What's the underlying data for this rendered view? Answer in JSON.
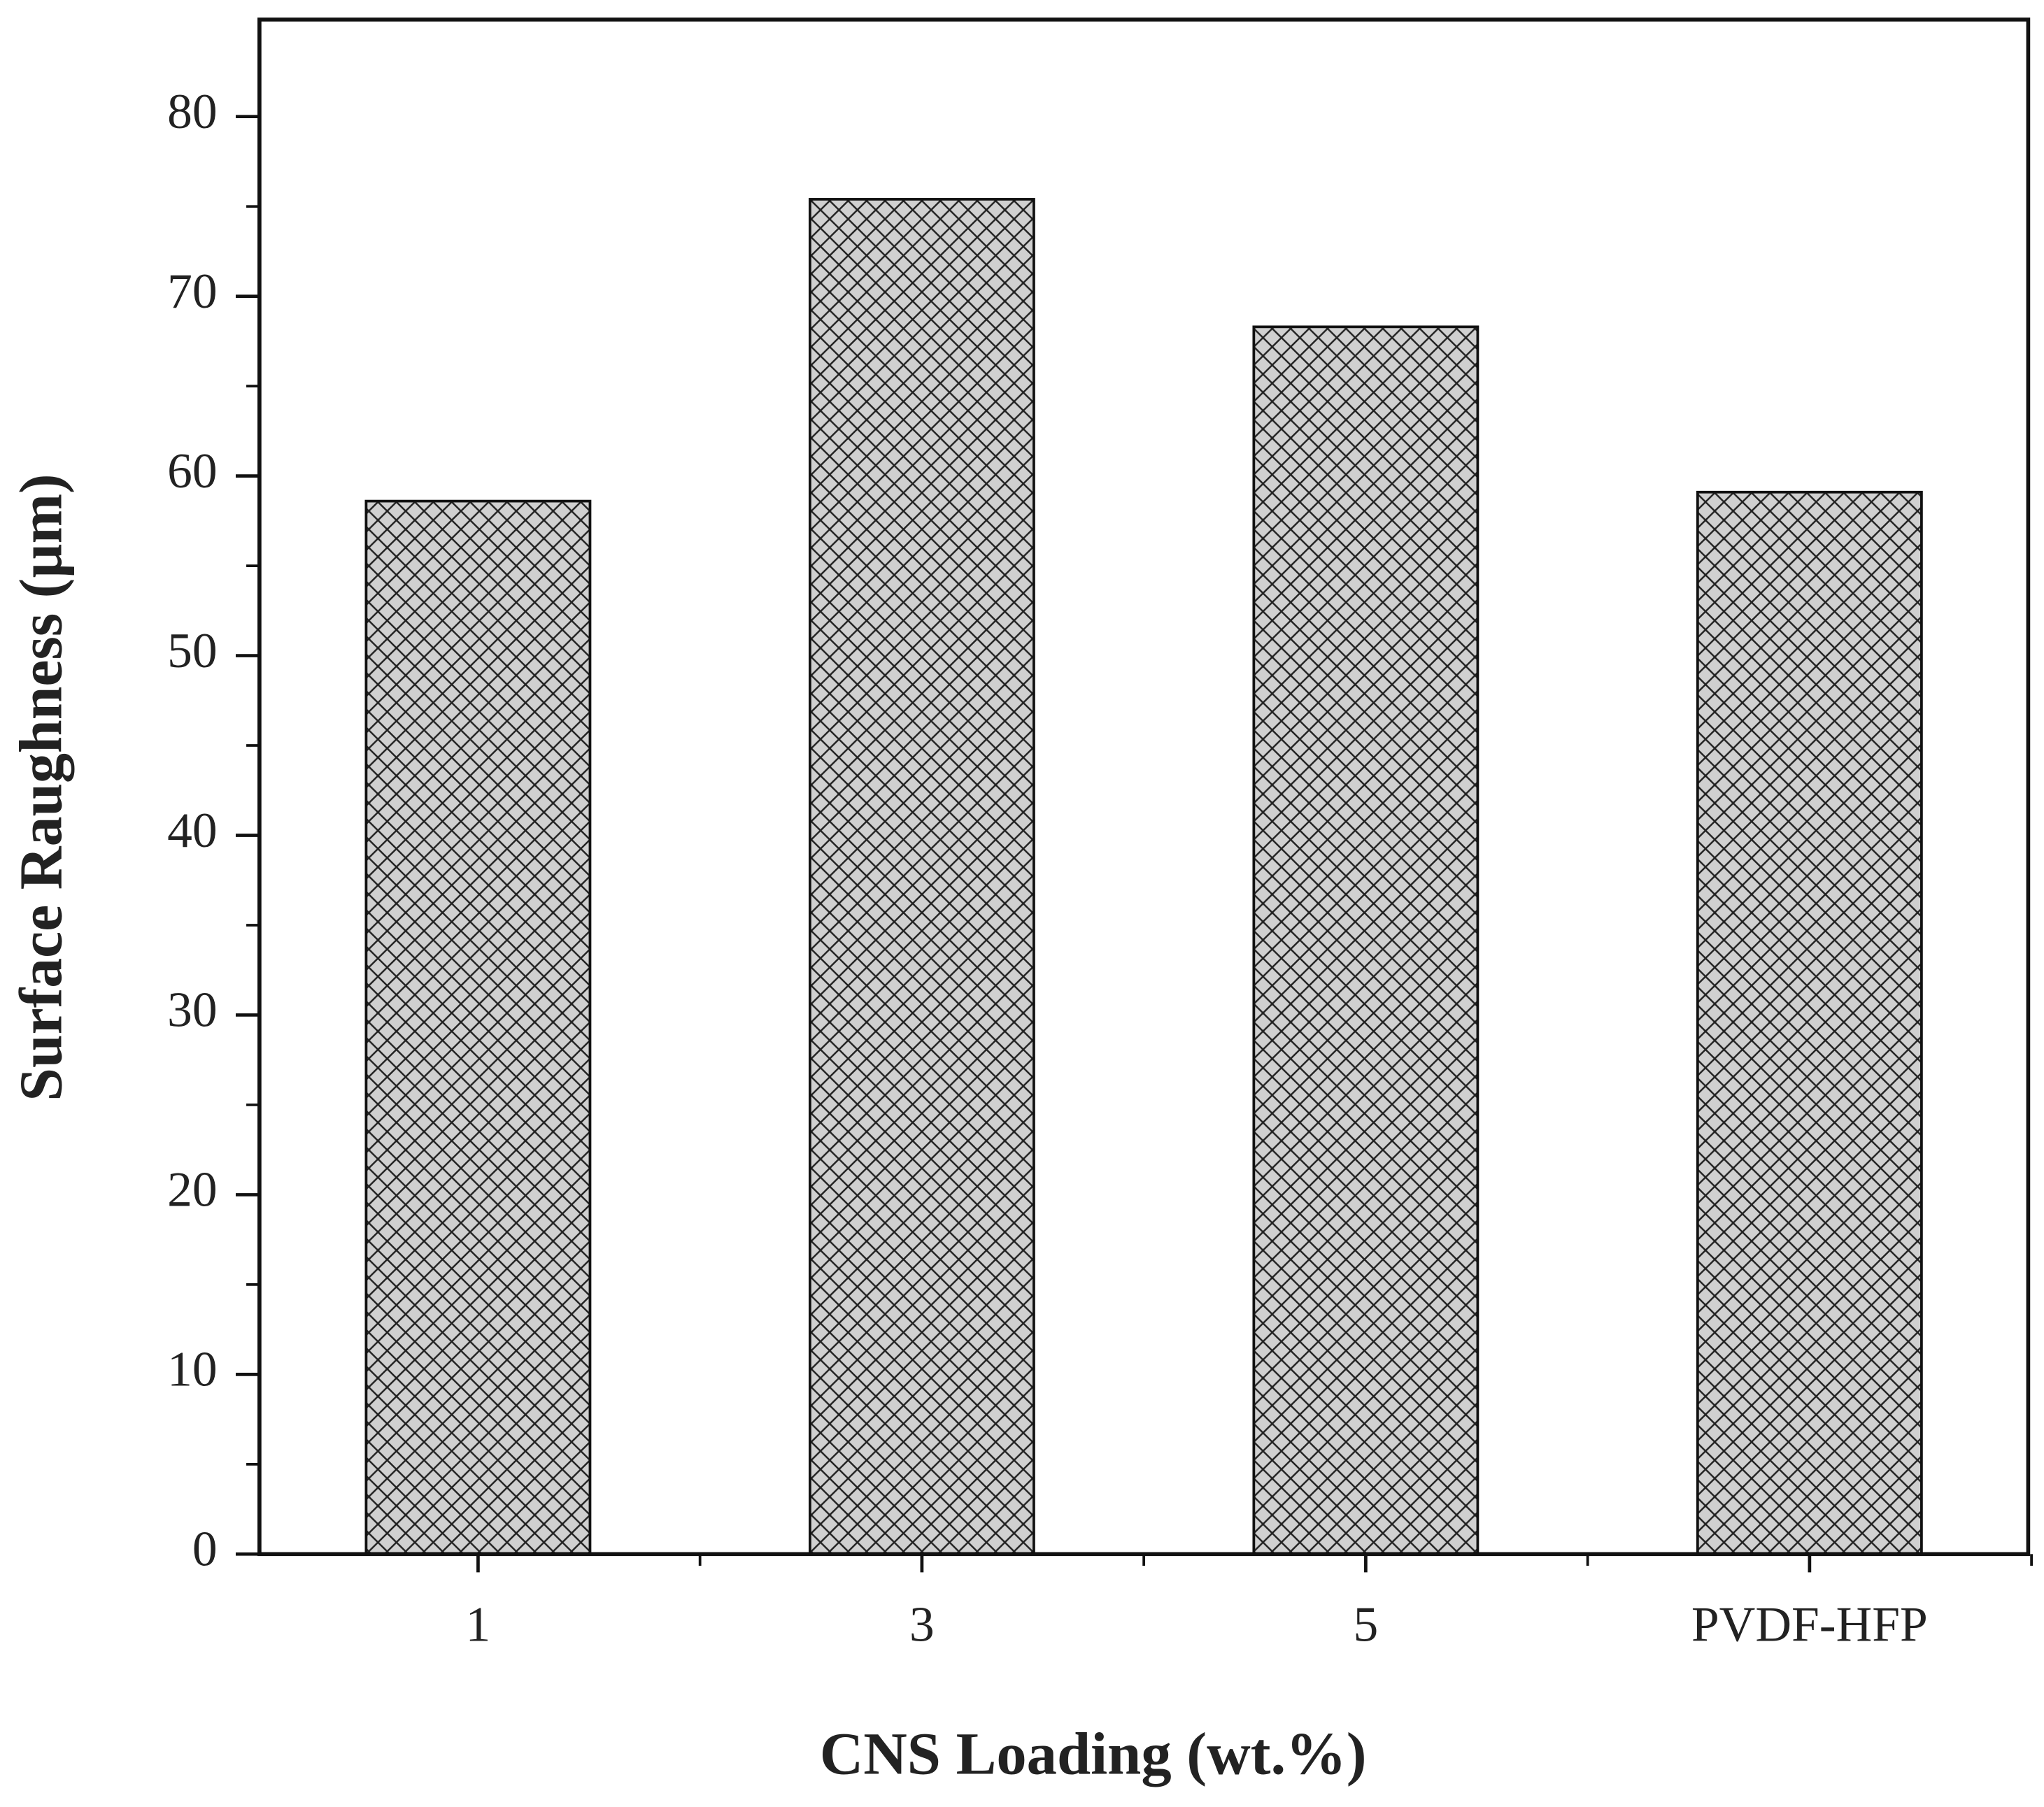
{
  "chart_data": {
    "type": "bar",
    "xlabel": "CNS Loading (wt.%)",
    "ylabel": "Surface Raughness (µm)",
    "categories": [
      "1",
      "3",
      "5",
      "PVDF-HFP"
    ],
    "values": [
      58.6,
      75.4,
      68.3,
      59.1
    ],
    "color": "#cfcfcf",
    "ylim": [
      0,
      85.4
    ],
    "yticks": [
      0,
      10,
      20,
      30,
      40,
      50,
      60,
      70,
      80
    ],
    "grid": false
  }
}
